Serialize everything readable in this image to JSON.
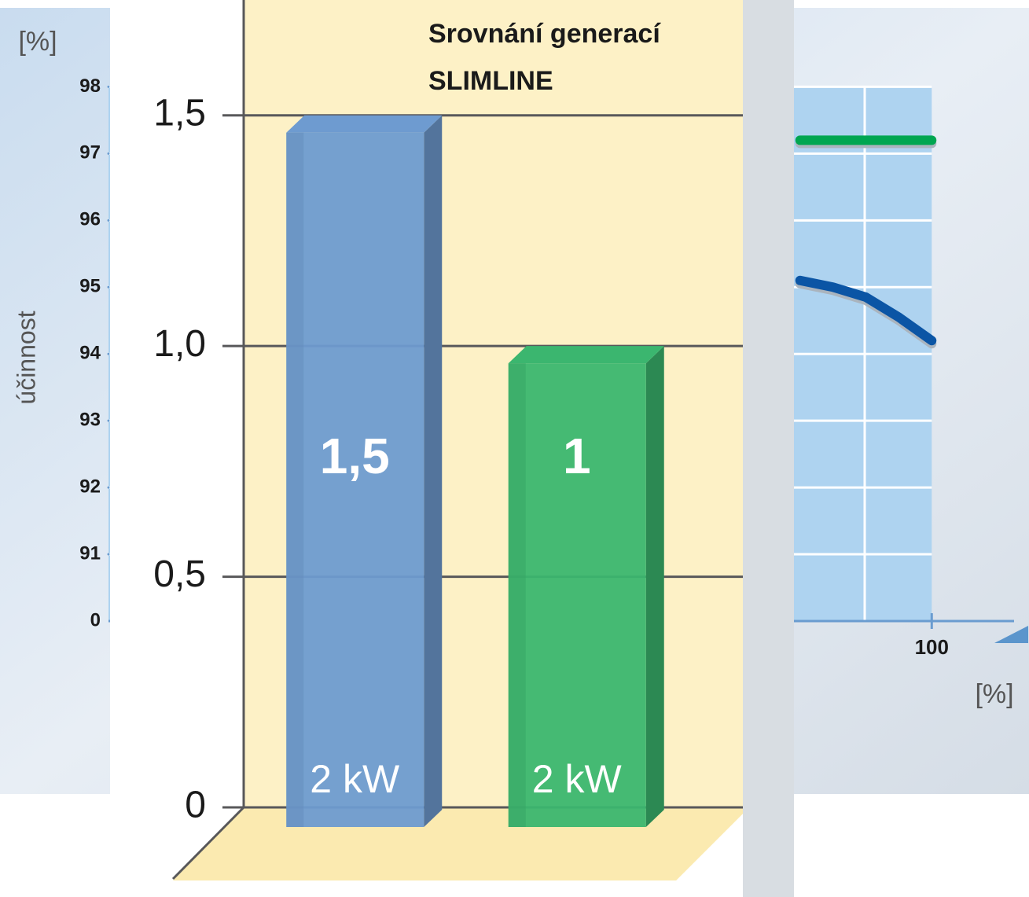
{
  "chart_data": [
    {
      "type": "bar",
      "title": [
        "Srovnání generací",
        "SLIMLINE"
      ],
      "categories": [
        "2 kW",
        "2 kW"
      ],
      "values": [
        1.5,
        1
      ],
      "value_labels": [
        "1,5",
        "1"
      ],
      "colors": [
        "#6e9bd0",
        "#3bb66f"
      ],
      "ylim": [
        0,
        1.75
      ],
      "yticks": [
        0,
        {
          "value": 0.5,
          "label": "0,5"
        },
        {
          "value": 1,
          "label": "1,0"
        },
        {
          "value": 1.5,
          "label": "1,5"
        }
      ],
      "grid": true
    },
    {
      "type": "line",
      "y_label": "účinnost",
      "y_unit": "[%]",
      "x_unit": "[%]",
      "axis_break_label": "0",
      "ylim": [
        90,
        99.3
      ],
      "yticks": [
        91,
        92,
        93,
        94,
        95,
        96,
        97,
        98
      ],
      "xlim": [
        0,
        110
      ],
      "xticks": [
        100
      ],
      "series": [
        {
          "color": "#00a651",
          "x": [
            84,
            100
          ],
          "values": [
            97.2,
            97.2
          ]
        },
        {
          "color": "#0b55a5",
          "x": [
            84,
            88,
            92,
            96,
            100
          ],
          "values": [
            95.1,
            95.0,
            94.85,
            94.55,
            94.2
          ]
        }
      ]
    }
  ]
}
